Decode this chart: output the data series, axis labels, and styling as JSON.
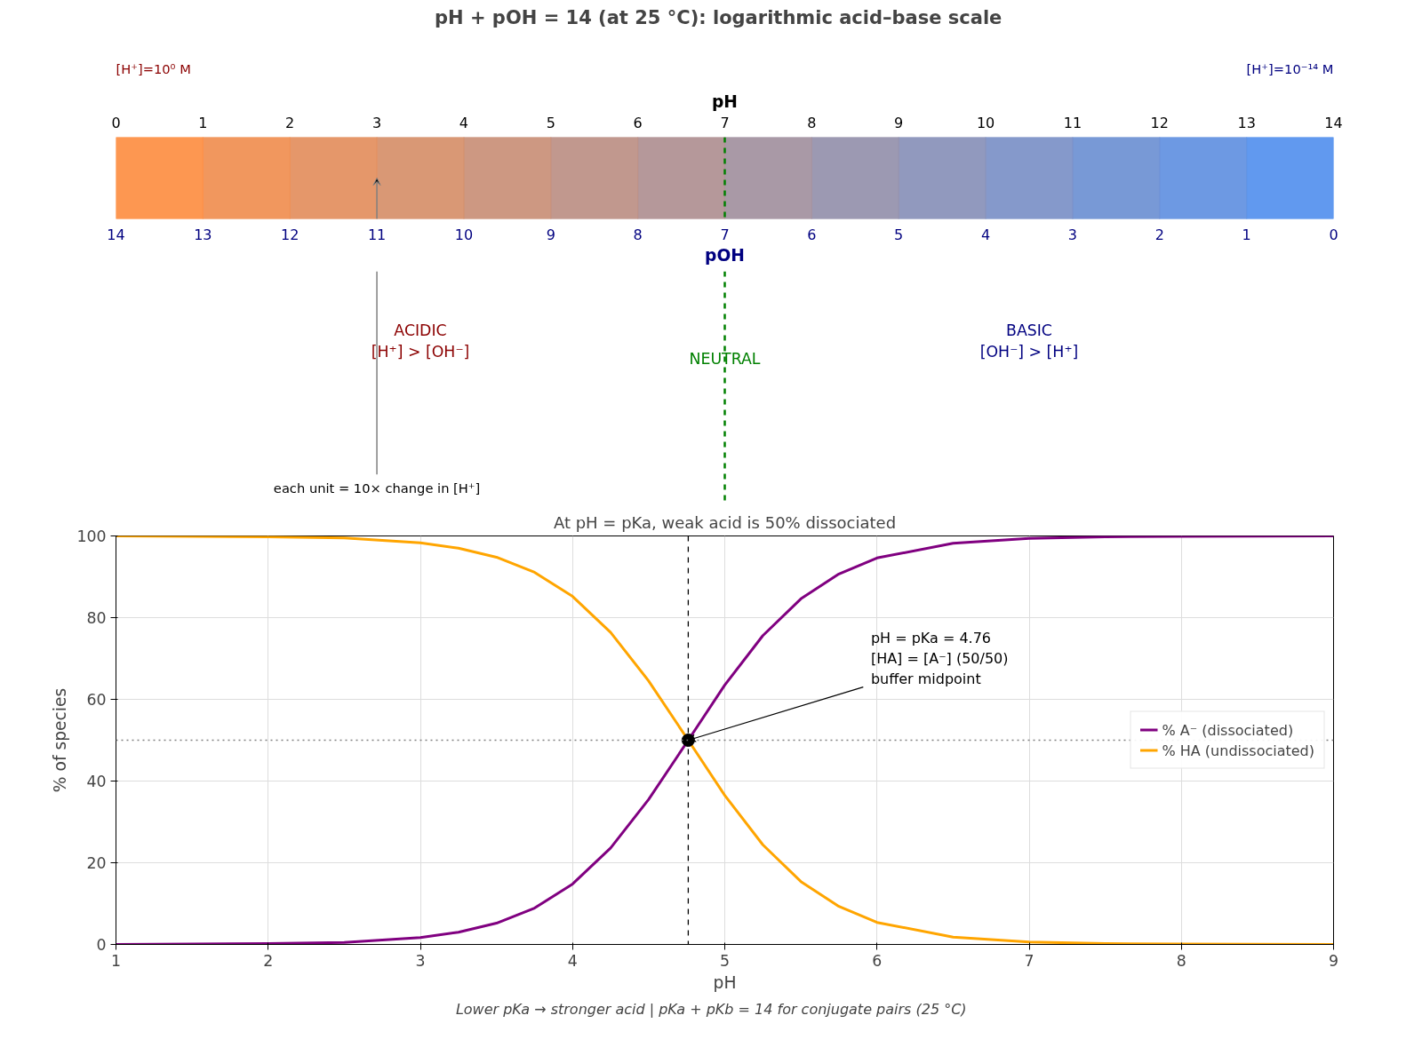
{
  "chart_data": [
    {
      "type": "bar",
      "orientation": "horizontal",
      "stacked": true,
      "title": "pH + pOH = 14  (at 25 °C):  logarithmic acid–base scale",
      "x2label": "pH",
      "xlabel": "pOH",
      "categories": [
        null
      ],
      "xlim": [
        14,
        0
      ],
      "xticks": [
        14,
        13,
        12,
        11,
        10,
        9,
        8,
        7,
        6,
        5,
        4,
        3,
        2,
        1,
        0
      ],
      "x2lim": [
        0,
        14
      ],
      "x2ticks": [
        0,
        1,
        2,
        3,
        4,
        5,
        6,
        7,
        8,
        9,
        10,
        11,
        12,
        13,
        14
      ],
      "series": [
        {
          "color": "#5894ee",
          "values": [
            1
          ]
        },
        {
          "color": "#6594e1",
          "values": [
            1
          ]
        },
        {
          "color": "#7193d4",
          "values": [
            1
          ]
        },
        {
          "color": "#7e93c8",
          "values": [
            1
          ]
        },
        {
          "color": "#8b93bb",
          "values": [
            1
          ]
        },
        {
          "color": "#9793ae",
          "values": [
            1
          ]
        },
        {
          "color": "#a493a1",
          "values": [
            1
          ]
        },
        {
          "color": "#b19295",
          "values": [
            1
          ]
        },
        {
          "color": "#be9288",
          "values": [
            1
          ]
        },
        {
          "color": "#ca927b",
          "values": [
            1
          ]
        },
        {
          "color": "#d7926e",
          "values": [
            1
          ]
        },
        {
          "color": "#e49162",
          "values": [
            1
          ]
        },
        {
          "color": "#f09155",
          "values": [
            1
          ]
        },
        {
          "color": "#fd9148",
          "values": [
            1
          ]
        }
      ],
      "ref_lines": [
        {
          "axis": "x",
          "value": 7,
          "label": "NEUTRAL",
          "color": "#008000",
          "line_style": "dashed"
        }
      ],
      "annotations": [
        "[H⁺]=10⁰ M",
        "[H⁺]=10⁻¹⁴ M",
        "ACIDIC\n[H⁺] > [OH⁻]",
        "BASIC\n[OH⁻] > [H⁺]",
        {
          "text": "each unit = 10× change in [H⁺]",
          "x": 11
        }
      ]
    },
    {
      "type": "line",
      "title": "At pH = pKa, weak acid is 50% dissociated",
      "xlabel": "pH",
      "ylabel": "% of species",
      "xlim": [
        1,
        9
      ],
      "ylim": [
        0,
        100
      ],
      "xticks": [
        1,
        2,
        3,
        4,
        5,
        6,
        7,
        8,
        9
      ],
      "yticks": [
        0,
        20,
        40,
        60,
        80,
        100
      ],
      "grid": true,
      "legend": "right",
      "x": [
        1,
        1.5,
        2,
        2.5,
        3,
        3.25,
        3.5,
        3.75,
        4,
        4.25,
        4.5,
        4.76,
        5,
        5.25,
        5.5,
        5.75,
        6,
        6.5,
        7,
        7.5,
        8,
        9
      ],
      "series": [
        {
          "name": "% A⁻ (dissociated)",
          "color": "#800080",
          "values": [
            0.0,
            0.1,
            0.2,
            0.5,
            1.7,
            3.0,
            5.2,
            8.9,
            14.8,
            23.6,
            35.5,
            50,
            63.5,
            75.6,
            84.6,
            90.7,
            94.6,
            98.2,
            99.4,
            99.8,
            99.9,
            100
          ]
        },
        {
          "name": "% HA (undissociated)",
          "color": "#ffa500",
          "values": [
            100,
            99.9,
            99.8,
            99.5,
            98.3,
            97.0,
            94.8,
            91.1,
            85.2,
            76.4,
            64.5,
            50,
            36.5,
            24.4,
            15.4,
            9.3,
            5.4,
            1.8,
            0.6,
            0.2,
            0.1,
            0.0
          ]
        },
        {
          "type": "scatter",
          "x": [
            4.76
          ],
          "values": [
            50
          ],
          "color": "#000000",
          "marker": "circle"
        }
      ],
      "ref_lines": [
        {
          "axis": "x",
          "value": 4.76,
          "color": "#000000",
          "line_style": "dashed"
        },
        {
          "axis": "y",
          "value": 50,
          "color": "#808080",
          "line_style": "dotted"
        }
      ],
      "annotations": [
        {
          "text": "pH = pKa = 4.76\n[HA] = [A⁻]  (50/50)\nbuffer midpoint",
          "x": 4.76,
          "y": 50
        },
        "Lower pKa → stronger acid    |    pKa + pKb = 14 for conjugate pairs (25 °C)"
      ]
    }
  ]
}
